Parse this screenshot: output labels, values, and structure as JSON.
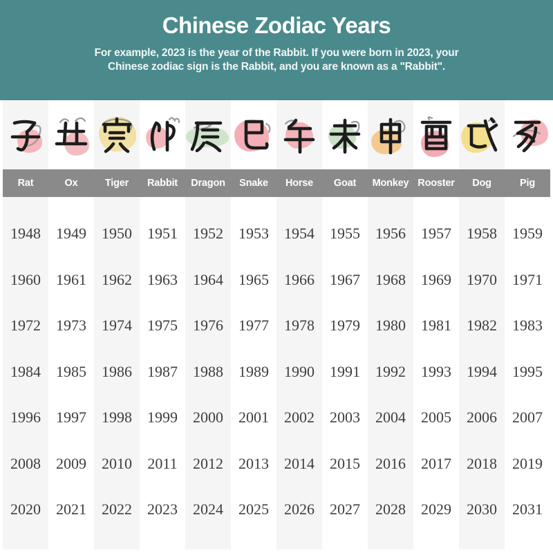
{
  "header": {
    "bg_color": "#4a8a8c",
    "title": "Chinese Zodiac Years",
    "subtitle_line1": "For example, 2023 is the year of the Rabbit. If you were born in 2023, your",
    "subtitle_line2": "Chinese zodiac sign is the Rabbit, and you are known as a \"Rabbit\"."
  },
  "colors": {
    "stripe": "#f5f5f5",
    "name_bar": "#8a8a8a",
    "year_text": "#3e3e3e",
    "text_on_dark": "#ffffff",
    "stroke_black": "#1d1d1d"
  },
  "zodiac": {
    "columns": [
      {
        "name": "Rat",
        "icon": "rat-icon",
        "zodiac_char": "子",
        "blob_color": "#f4b6ba",
        "years": [
          1948,
          1960,
          1972,
          1984,
          1996,
          2008,
          2020
        ]
      },
      {
        "name": "Ox",
        "icon": "ox-icon",
        "zodiac_char": "丑",
        "blob_color": "#f3bcc0",
        "years": [
          1949,
          1961,
          1973,
          1985,
          1997,
          2009,
          2021
        ]
      },
      {
        "name": "Tiger",
        "icon": "tiger-icon",
        "zodiac_char": "寅",
        "blob_color": "#f1e1a4",
        "years": [
          1950,
          1962,
          1974,
          1986,
          1998,
          2010,
          2022
        ]
      },
      {
        "name": "Rabbit",
        "icon": "rabbit-icon",
        "zodiac_char": "卯",
        "blob_color": "#f4b8bc",
        "years": [
          1951,
          1963,
          1975,
          1987,
          1999,
          2011,
          2023
        ]
      },
      {
        "name": "Dragon",
        "icon": "dragon-icon",
        "zodiac_char": "辰",
        "blob_color": "#cfe4cb",
        "years": [
          1952,
          1964,
          1976,
          1988,
          2000,
          2012,
          2024
        ]
      },
      {
        "name": "Snake",
        "icon": "snake-icon",
        "zodiac_char": "巳",
        "blob_color": "#f3afb5",
        "years": [
          1953,
          1965,
          1977,
          1989,
          2001,
          2013,
          2025
        ]
      },
      {
        "name": "Horse",
        "icon": "horse-icon",
        "zodiac_char": "午",
        "blob_color": "#f3b3b9",
        "years": [
          1954,
          1966,
          1978,
          1990,
          2002,
          2014,
          2026
        ]
      },
      {
        "name": "Goat",
        "icon": "goat-icon",
        "zodiac_char": "未",
        "blob_color": "#c9e2c6",
        "years": [
          1955,
          1967,
          1979,
          1991,
          2003,
          2015,
          2027
        ]
      },
      {
        "name": "Monkey",
        "icon": "monkey-icon",
        "zodiac_char": "申",
        "blob_color": "#f4ca90",
        "years": [
          1956,
          1968,
          1980,
          1992,
          2004,
          2016,
          2028
        ]
      },
      {
        "name": "Rooster",
        "icon": "rooster-icon",
        "zodiac_char": "酉",
        "blob_color": "#f2abb2",
        "years": [
          1957,
          1969,
          1981,
          1993,
          2005,
          2017,
          2029
        ]
      },
      {
        "name": "Dog",
        "icon": "dog-icon",
        "zodiac_char": "戌",
        "blob_color": "#f4df8d",
        "years": [
          1958,
          1970,
          1982,
          1994,
          2006,
          2018,
          2030
        ]
      },
      {
        "name": "Pig",
        "icon": "pig-icon",
        "zodiac_char": "亥",
        "blob_color": "#f4b6bc",
        "years": [
          1959,
          1971,
          1983,
          1995,
          2007,
          2019,
          2031
        ]
      }
    ]
  },
  "chart_data": {
    "type": "table",
    "title": "Chinese Zodiac Years",
    "columns": [
      "Rat",
      "Ox",
      "Tiger",
      "Rabbit",
      "Dragon",
      "Snake",
      "Horse",
      "Goat",
      "Monkey",
      "Rooster",
      "Dog",
      "Pig"
    ],
    "rows": [
      [
        1948,
        1949,
        1950,
        1951,
        1952,
        1953,
        1954,
        1955,
        1956,
        1957,
        1958,
        1959
      ],
      [
        1960,
        1961,
        1962,
        1963,
        1964,
        1965,
        1966,
        1967,
        1968,
        1969,
        1970,
        1971
      ],
      [
        1972,
        1973,
        1974,
        1975,
        1976,
        1977,
        1978,
        1979,
        1980,
        1981,
        1982,
        1983
      ],
      [
        1984,
        1985,
        1986,
        1987,
        1988,
        1989,
        1990,
        1991,
        1992,
        1993,
        1994,
        1995
      ],
      [
        1996,
        1997,
        1998,
        1999,
        2000,
        2001,
        2002,
        2003,
        2004,
        2005,
        2006,
        2007
      ],
      [
        2008,
        2009,
        2010,
        2011,
        2012,
        2013,
        2014,
        2015,
        2016,
        2017,
        2018,
        2019
      ],
      [
        2020,
        2021,
        2022,
        2023,
        2024,
        2025,
        2026,
        2027,
        2028,
        2029,
        2030,
        2031
      ]
    ],
    "layout_hints": {
      "striped_columns": "odd columns shaded light gray",
      "header_row": "gray band with white animal names",
      "icon_row": "brush-style zodiac calligraphy over pastel ink blobs"
    }
  }
}
